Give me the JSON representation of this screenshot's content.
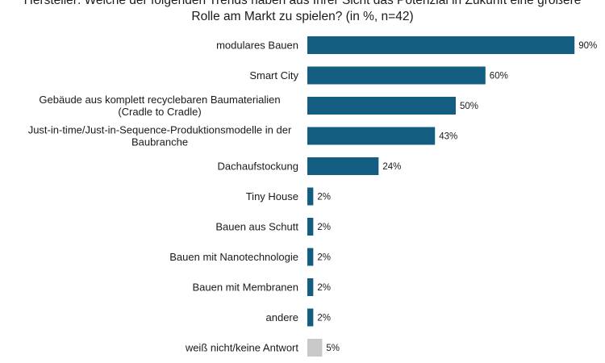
{
  "chart_data": {
    "type": "bar",
    "orientation": "horizontal",
    "title_lines": [
      "Hersteller: Welche der folgenden Trends haben aus Ihrer Sicht das Potenzial in Zukunft eine größere",
      "Rolle am Markt zu spielen? (in %, n=42)"
    ],
    "categories": [
      [
        "modulares Bauen"
      ],
      [
        "Smart City"
      ],
      [
        "Gebäude aus komplett recyclebaren Baumaterialien",
        "(Cradle to Cradle)"
      ],
      [
        "Just-in-time/Just-in-Sequence-Produktionsmodelle in der",
        "Baubranche"
      ],
      [
        "Dachaufstockung"
      ],
      [
        "Tiny House"
      ],
      [
        "Bauen aus Schutt"
      ],
      [
        "Bauen mit Nanotechnologie"
      ],
      [
        "Bauen mit Membranen"
      ],
      [
        "andere"
      ],
      [
        "weiß nicht/keine Antwort"
      ]
    ],
    "values": [
      90,
      60,
      50,
      43,
      24,
      2,
      2,
      2,
      2,
      2,
      5
    ],
    "value_labels": [
      "90%",
      "60%",
      "50%",
      "43%",
      "24%",
      "2%",
      "2%",
      "2%",
      "2%",
      "2%",
      "5%"
    ],
    "colors": [
      "#135d80",
      "#135d80",
      "#135d80",
      "#135d80",
      "#135d80",
      "#135d80",
      "#135d80",
      "#135d80",
      "#135d80",
      "#135d80",
      "#c8c8c8"
    ],
    "xlim": [
      0,
      100
    ],
    "grid": false,
    "legend": "none"
  }
}
